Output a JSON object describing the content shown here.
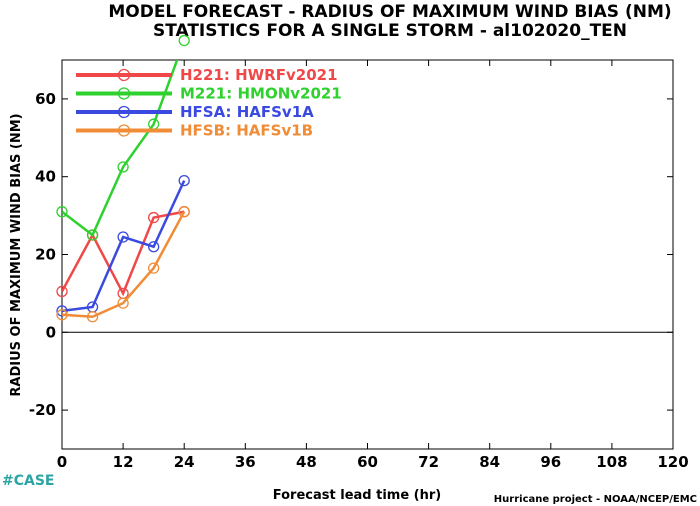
{
  "chart_data": {
    "type": "line",
    "title": "MODEL FORECAST - RADIUS OF MAXIMUM WIND BIAS (NM)",
    "subtitle": "STATISTICS FOR A SINGLE STORM - al102020_TEN",
    "xlabel": "Forecast lead time (hr)",
    "ylabel": "RADIUS OF MAXIMUM WIND BIAS (NM)",
    "xlim": [
      0,
      120
    ],
    "ylim": [
      -30,
      70
    ],
    "xticks": [
      "0",
      "12",
      "24",
      "36",
      "48",
      "60",
      "72",
      "84",
      "96",
      "108",
      "120"
    ],
    "yticks": [
      "-20",
      "0",
      "20",
      "40",
      "60"
    ],
    "zero_line": true,
    "legend_position": "top-left",
    "series": [
      {
        "name": "H221: HWRFv2021",
        "color": "#f04848",
        "x": [
          0,
          6,
          12,
          18,
          24
        ],
        "values": [
          10.5,
          25,
          10,
          29.5,
          31
        ]
      },
      {
        "name": "M221: HMONv2021",
        "color": "#2ed12e",
        "x": [
          0,
          6,
          12,
          18,
          24
        ],
        "values": [
          31,
          25,
          42.5,
          53.5,
          75
        ]
      },
      {
        "name": "HFSA: HAFSv1A",
        "color": "#3a4ae0",
        "x": [
          0,
          6,
          12,
          18,
          24
        ],
        "values": [
          5.5,
          6.5,
          24.5,
          22,
          39
        ]
      },
      {
        "name": "HFSB: HAFSv1B",
        "color": "#f08c36",
        "x": [
          0,
          6,
          12,
          18,
          24
        ],
        "values": [
          4.5,
          4,
          7.5,
          16.5,
          31
        ]
      }
    ]
  },
  "footer": {
    "tag": "#CASE",
    "credit": "Hurricane project - NOAA/NCEP/EMC"
  }
}
